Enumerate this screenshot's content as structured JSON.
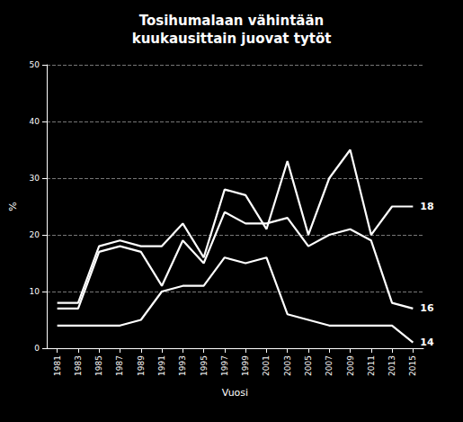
{
  "chart_data": {
    "type": "line",
    "title": "Tosihumalaan vähintään\nkuukausittain juovat tytöt",
    "xlabel": "Vuosi",
    "ylabel": "%",
    "x": [
      1981,
      1983,
      1985,
      1987,
      1989,
      1991,
      1993,
      1995,
      1997,
      1999,
      2001,
      2003,
      2005,
      2007,
      2009,
      2011,
      2013,
      2015
    ],
    "series": [
      {
        "name": "18",
        "color": "#ffffff",
        "values": [
          8,
          8,
          18,
          19,
          18,
          18,
          22,
          16,
          28,
          27,
          21,
          33,
          20,
          30,
          35,
          20,
          25,
          25
        ]
      },
      {
        "name": "16",
        "color": "#ffffff",
        "values": [
          7,
          7,
          17,
          18,
          17,
          11,
          19,
          15,
          24,
          22,
          22,
          23,
          18,
          20,
          21,
          19,
          8,
          7
        ]
      },
      {
        "name": "14",
        "color": "#ffffff",
        "values": [
          4,
          4,
          4,
          4,
          5,
          10,
          11,
          11,
          16,
          15,
          16,
          6,
          5,
          4,
          4,
          4,
          4,
          1
        ]
      }
    ],
    "xlim": [
      1980,
      2016
    ],
    "xticks": [
      1981,
      1983,
      1985,
      1987,
      1989,
      1991,
      1993,
      1995,
      1997,
      1999,
      2001,
      2003,
      2005,
      2007,
      2009,
      2011,
      2013,
      2015
    ],
    "ylim": [
      0,
      50
    ],
    "yticks": [
      0,
      10,
      20,
      30,
      40,
      50
    ],
    "grid": true
  }
}
